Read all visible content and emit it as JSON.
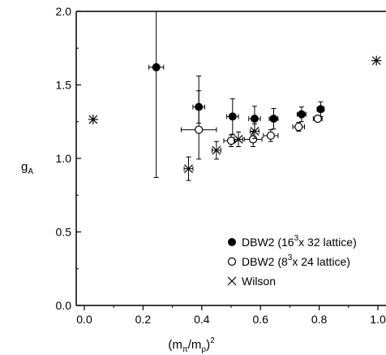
{
  "chart_data": {
    "type": "scatter",
    "xlabel": {
      "base": "(m",
      "sub1": "π",
      "mid": "/m",
      "sub2": "ρ",
      "end": ")",
      "sup": "2"
    },
    "ylabel": {
      "base": "g",
      "sub": "A"
    },
    "xlim": [
      -0.07,
      1.0
    ],
    "ylim": [
      0.0,
      2.0
    ],
    "xticks": [
      "0.0",
      "0.2",
      "0.4",
      "0.6",
      "0.8",
      "1.0"
    ],
    "yticks": [
      "0.0",
      "0.5",
      "1.0",
      "1.5",
      "2.0"
    ],
    "grid": false,
    "legend_position": "bottom-right",
    "series": [
      {
        "name": {
          "a": "DBW2 (16",
          "sup": "3",
          "b": "x 32 lattice)"
        },
        "marker": "filled-circle",
        "points": [
          {
            "x": 0.245,
            "y": 1.62,
            "xerr": 0.025,
            "yerr_up": 0.38,
            "yerr_down": 0.75
          },
          {
            "x": 0.39,
            "y": 1.35,
            "xerr": 0.02,
            "yerr_up": 0.11,
            "yerr_down": 0.11
          },
          {
            "x": 0.505,
            "y": 1.285,
            "xerr": 0.02,
            "yerr_up": 0.12,
            "yerr_down": 0.12
          },
          {
            "x": 0.58,
            "y": 1.27,
            "xerr": 0.02,
            "yerr_up": 0.085,
            "yerr_down": 0.085
          },
          {
            "x": 0.645,
            "y": 1.27,
            "xerr": 0.015,
            "yerr_up": 0.07,
            "yerr_down": 0.07
          },
          {
            "x": 0.74,
            "y": 1.3,
            "xerr": 0.015,
            "yerr_up": 0.05,
            "yerr_down": 0.05
          },
          {
            "x": 0.805,
            "y": 1.335,
            "xerr": 0.012,
            "yerr_up": 0.05,
            "yerr_down": 0.05
          }
        ]
      },
      {
        "name": {
          "a": "DBW2 (8",
          "sup": "3",
          "b": "x 24 lattice)"
        },
        "marker": "open-circle",
        "points": [
          {
            "x": 0.39,
            "y": 1.195,
            "xerr": 0.06,
            "yerr_up": 0.365,
            "yerr_down": 0.2
          },
          {
            "x": 0.5,
            "y": 1.12,
            "xerr": 0.025,
            "yerr_up": 0.04,
            "yerr_down": 0.04
          },
          {
            "x": 0.575,
            "y": 1.13,
            "xerr": 0.03,
            "yerr_up": 0.05,
            "yerr_down": 0.05
          },
          {
            "x": 0.635,
            "y": 1.155,
            "xerr": 0.025,
            "yerr_up": 0.04,
            "yerr_down": 0.04
          },
          {
            "x": 0.73,
            "y": 1.215,
            "xerr": 0.02,
            "yerr_up": 0.03,
            "yerr_down": 0.03
          },
          {
            "x": 0.795,
            "y": 1.27,
            "xerr": 0.015,
            "yerr_up": 0.02,
            "yerr_down": 0.02
          }
        ]
      },
      {
        "name": {
          "a": "Wilson",
          "sup": "",
          "b": ""
        },
        "marker": "x",
        "points": [
          {
            "x": 0.355,
            "y": 0.93,
            "xerr": 0.015,
            "yerr_up": 0.08,
            "yerr_down": 0.08
          },
          {
            "x": 0.45,
            "y": 1.055,
            "xerr": 0.015,
            "yerr_up": 0.06,
            "yerr_down": 0.06
          },
          {
            "x": 0.525,
            "y": 1.13,
            "xerr": 0.015,
            "yerr_up": 0.05,
            "yerr_down": 0.05
          },
          {
            "x": 0.58,
            "y": 1.185,
            "xerr": 0.015,
            "yerr_up": 0.05,
            "yerr_down": 0.05
          }
        ]
      },
      {
        "name": null,
        "marker": "asterisk",
        "points": [
          {
            "x": 0.03,
            "y": 1.265
          },
          {
            "x": 0.995,
            "y": 1.665
          }
        ]
      }
    ]
  }
}
